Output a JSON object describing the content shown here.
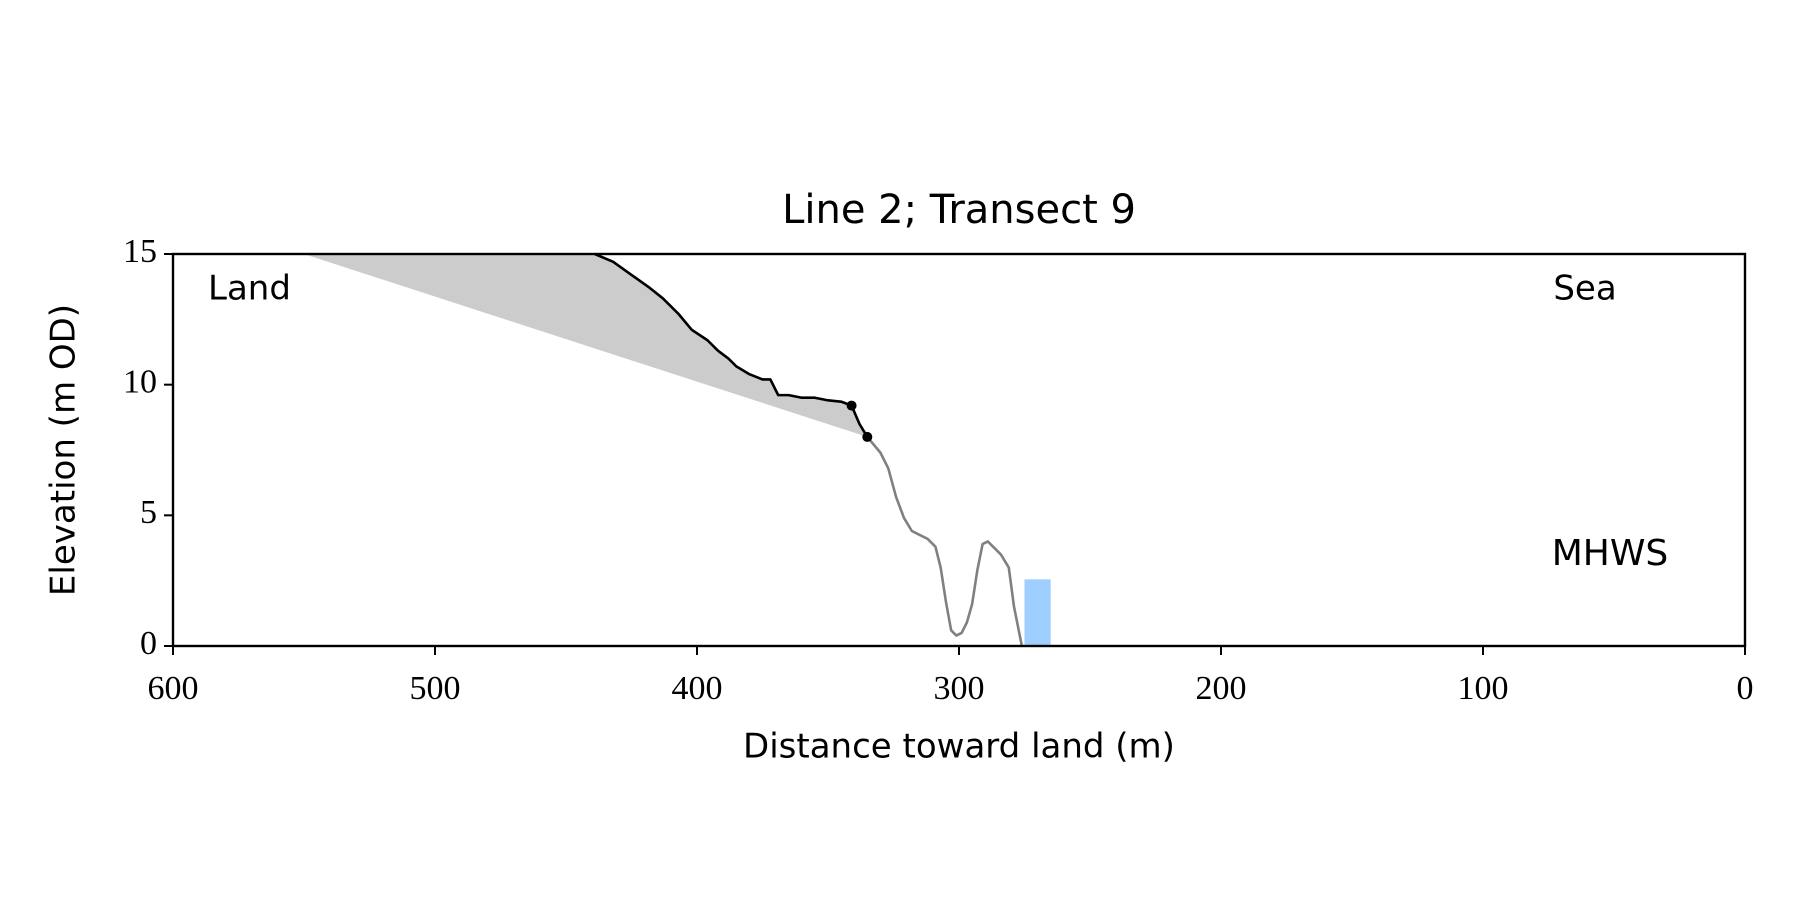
{
  "chart_data": {
    "type": "line",
    "title": "Line 2; Transect 9",
    "xlabel": "Distance toward land (m)",
    "ylabel": "Elevation (m OD)",
    "xlim": [
      600,
      0
    ],
    "ylim": [
      0,
      15
    ],
    "xticks": [
      600,
      500,
      400,
      300,
      200,
      100,
      0
    ],
    "yticks": [
      0,
      5,
      10,
      15
    ],
    "annotations": [
      "Land",
      "Sea"
    ],
    "series": [
      {
        "color": "#808080",
        "x": [
          335,
          330,
          327,
          324,
          321,
          318,
          315,
          312,
          309,
          307,
          305,
          303,
          301,
          299,
          297,
          295,
          293,
          291,
          289,
          287,
          284,
          281,
          279,
          276
        ],
        "values": [
          8.0,
          7.4,
          6.8,
          5.7,
          4.9,
          4.4,
          4.25,
          4.1,
          3.8,
          3.0,
          1.7,
          0.6,
          0.4,
          0.5,
          0.9,
          1.6,
          2.9,
          3.9,
          4.0,
          3.8,
          3.5,
          3.0,
          1.5,
          0
        ]
      },
      {
        "color": "#000000",
        "x": [
          439,
          432,
          425,
          418,
          413,
          407,
          402,
          396,
          392,
          388,
          385,
          380,
          375,
          372,
          369,
          365,
          360,
          355,
          350,
          345,
          341,
          338,
          335
        ],
        "values": [
          15,
          14.7,
          14.2,
          13.7,
          13.3,
          12.7,
          12.1,
          11.7,
          11.3,
          11.0,
          10.7,
          10.4,
          10.2,
          10.2,
          9.6,
          9.6,
          9.5,
          9.5,
          9.4,
          9.35,
          9.2,
          8.5,
          8.0
        ]
      }
    ],
    "markers": {
      "color": "#000000",
      "x": [
        341,
        335
      ],
      "values": [
        9.2,
        8.0
      ]
    },
    "fill": {
      "color": "#cccccc",
      "x": [
        550,
        335
      ],
      "values": [
        15,
        8.0
      ]
    },
    "mhws": {
      "label": "MHWS",
      "color": "#9ecfff",
      "label_color": "#6699cc",
      "x": [
        275,
        265
      ],
      "value": 2.55
    }
  }
}
